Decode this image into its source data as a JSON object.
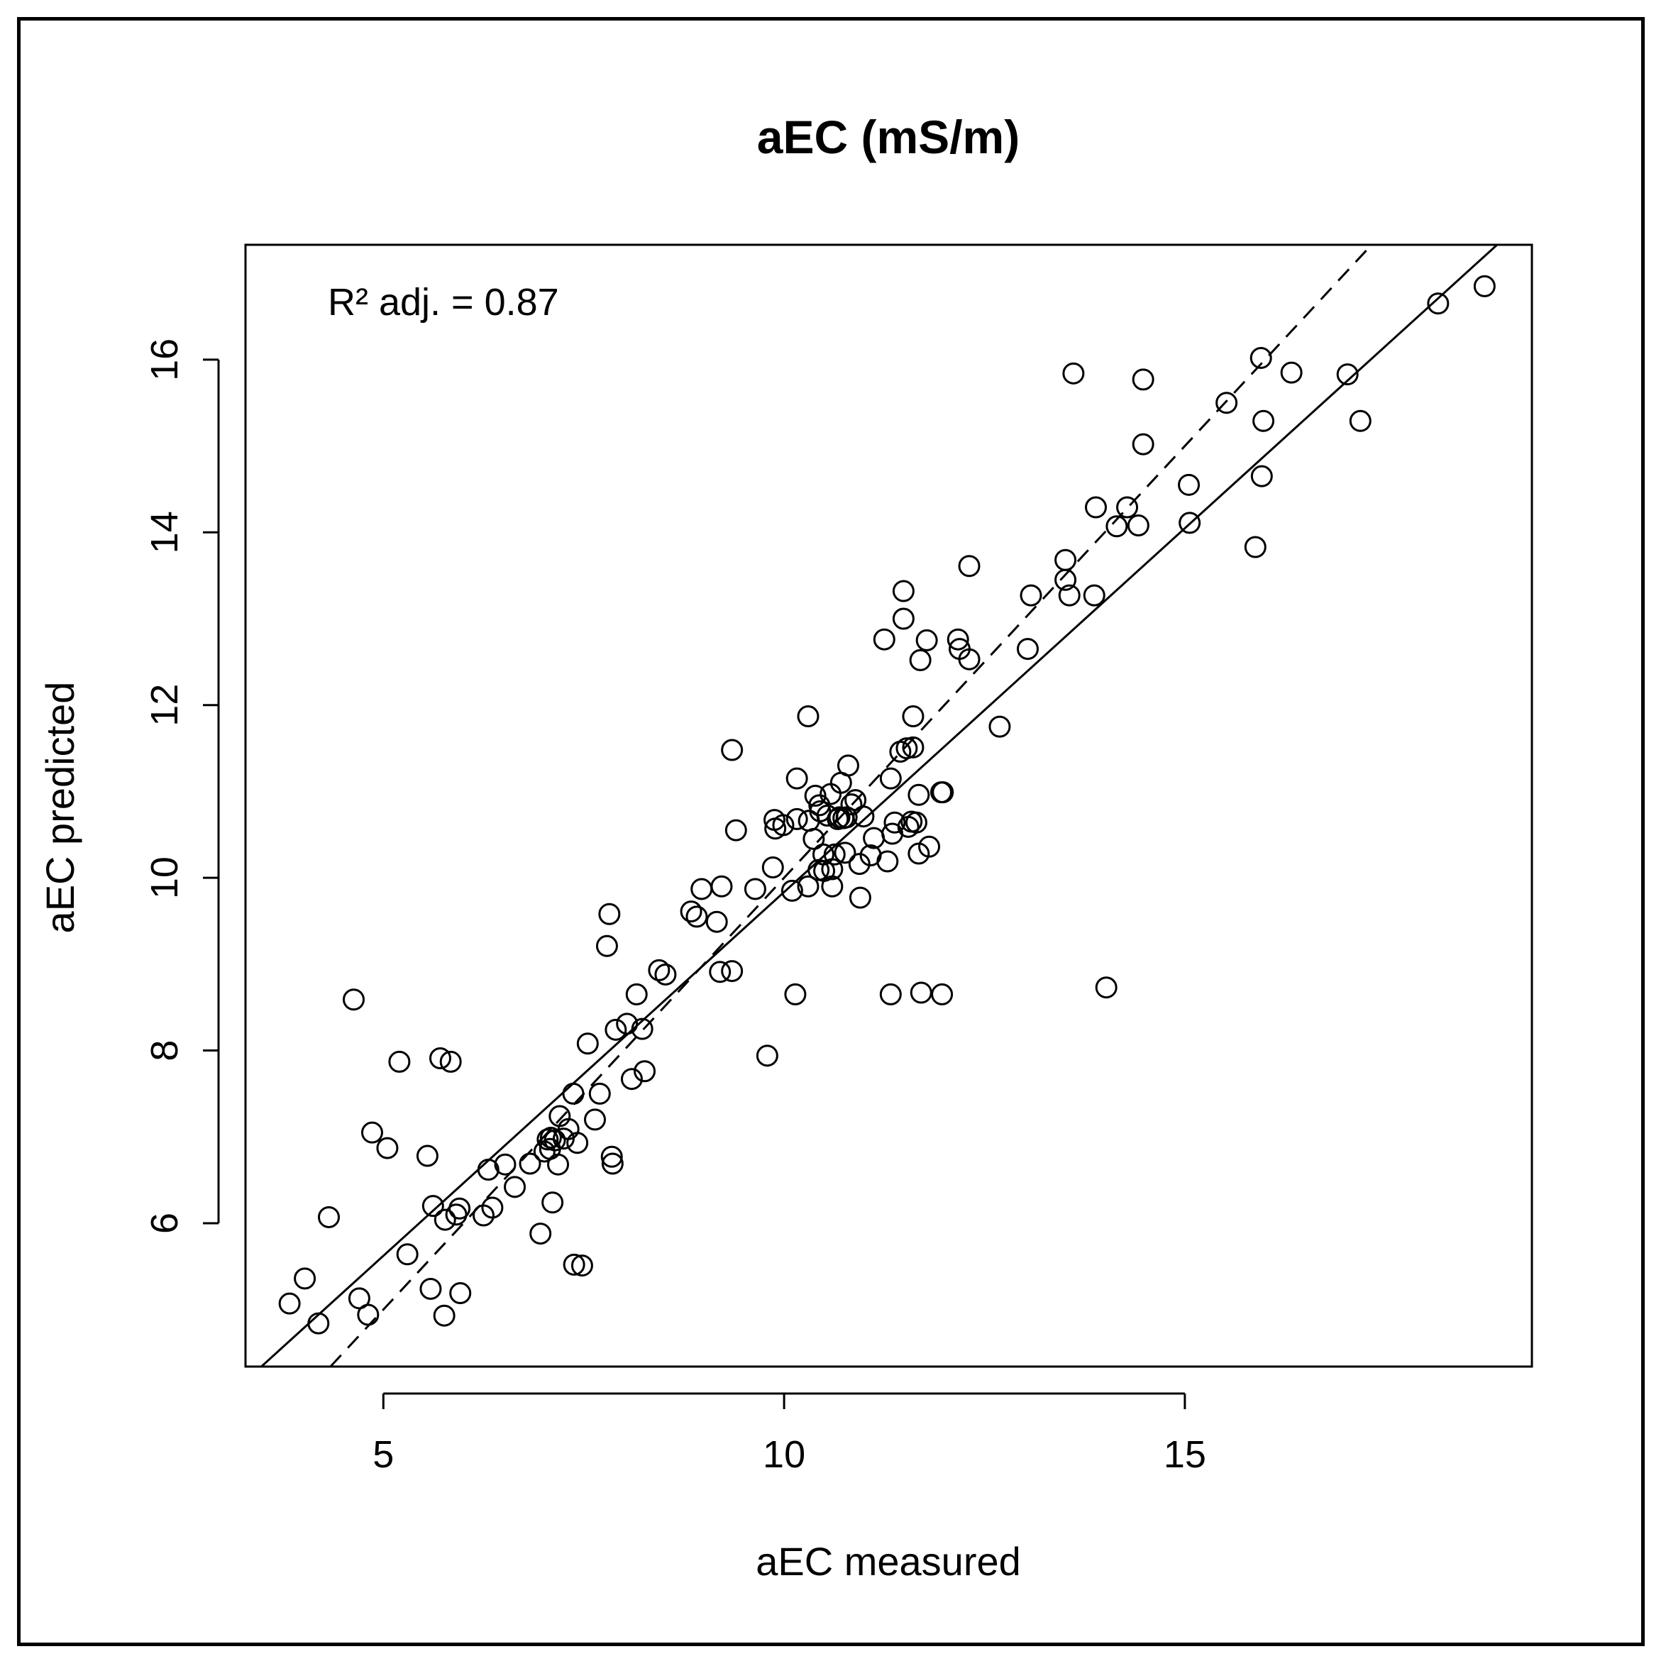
{
  "chart_data": {
    "type": "scatter",
    "title": "aEC (mS/m)",
    "xlabel": "aEC measured",
    "ylabel": "aEC predicted",
    "annotation": "R² adj. = 0.87",
    "xlim": [
      3.28,
      19.33
    ],
    "ylim": [
      4.34,
      17.33
    ],
    "xticks": [
      5,
      10,
      15
    ],
    "yticks": [
      6,
      8,
      10,
      12,
      14,
      16
    ],
    "lines": [
      {
        "name": "fitted regression",
        "style": "solid",
        "slope": 0.8425,
        "intercept": 1.41
      },
      {
        "name": "1:1 line",
        "style": "dashed",
        "slope": 1.0,
        "intercept": 0.0
      }
    ],
    "series": [
      {
        "name": "observations",
        "points": [
          [
            3.83,
            5.07
          ],
          [
            4.02,
            5.36
          ],
          [
            4.19,
            4.84
          ],
          [
            4.32,
            6.07
          ],
          [
            4.63,
            8.59
          ],
          [
            4.7,
            5.13
          ],
          [
            4.81,
            4.94
          ],
          [
            4.86,
            7.05
          ],
          [
            5.05,
            6.87
          ],
          [
            5.2,
            7.87
          ],
          [
            5.3,
            5.64
          ],
          [
            5.55,
            6.78
          ],
          [
            5.59,
            5.24
          ],
          [
            5.62,
            6.2
          ],
          [
            5.71,
            7.91
          ],
          [
            5.76,
            4.93
          ],
          [
            5.77,
            6.04
          ],
          [
            5.84,
            7.87
          ],
          [
            5.91,
            6.1
          ],
          [
            5.95,
            6.17
          ],
          [
            5.96,
            5.19
          ],
          [
            6.25,
            6.09
          ],
          [
            6.31,
            6.62
          ],
          [
            6.36,
            6.18
          ],
          [
            6.52,
            6.68
          ],
          [
            6.64,
            6.42
          ],
          [
            6.83,
            6.69
          ],
          [
            6.96,
            5.88
          ],
          [
            7.01,
            6.83
          ],
          [
            7.05,
            6.97
          ],
          [
            7.08,
            6.86
          ],
          [
            7.09,
            6.99
          ],
          [
            7.11,
            6.24
          ],
          [
            7.14,
            6.96
          ],
          [
            7.18,
            6.68
          ],
          [
            7.2,
            7.24
          ],
          [
            7.25,
            6.98
          ],
          [
            7.31,
            7.09
          ],
          [
            7.37,
            7.5
          ],
          [
            7.38,
            5.52
          ],
          [
            7.42,
            6.93
          ],
          [
            7.48,
            5.51
          ],
          [
            7.55,
            8.08
          ],
          [
            7.64,
            7.2
          ],
          [
            7.7,
            7.5
          ],
          [
            7.79,
            9.21
          ],
          [
            7.82,
            9.58
          ],
          [
            7.85,
            6.77
          ],
          [
            7.86,
            6.69
          ],
          [
            7.9,
            8.24
          ],
          [
            8.04,
            8.31
          ],
          [
            8.1,
            7.67
          ],
          [
            8.16,
            8.65
          ],
          [
            8.23,
            8.25
          ],
          [
            8.26,
            7.76
          ],
          [
            8.44,
            8.93
          ],
          [
            8.52,
            8.88
          ],
          [
            8.84,
            9.61
          ],
          [
            8.91,
            9.55
          ],
          [
            8.97,
            9.87
          ],
          [
            9.16,
            9.49
          ],
          [
            9.2,
            8.91
          ],
          [
            9.22,
            9.9
          ],
          [
            9.35,
            8.92
          ],
          [
            9.35,
            11.48
          ],
          [
            9.4,
            10.55
          ],
          [
            9.64,
            9.87
          ],
          [
            9.79,
            7.94
          ],
          [
            9.86,
            10.12
          ],
          [
            9.88,
            10.67
          ],
          [
            9.89,
            10.57
          ],
          [
            9.99,
            10.61
          ],
          [
            10.1,
            9.85
          ],
          [
            10.14,
            8.65
          ],
          [
            10.16,
            10.68
          ],
          [
            10.16,
            11.15
          ],
          [
            10.3,
            9.9
          ],
          [
            10.3,
            11.87
          ],
          [
            10.31,
            10.66
          ],
          [
            10.37,
            10.45
          ],
          [
            10.39,
            10.95
          ],
          [
            10.43,
            10.09
          ],
          [
            10.44,
            10.84
          ],
          [
            10.45,
            10.77
          ],
          [
            10.49,
            10.27
          ],
          [
            10.5,
            10.08
          ],
          [
            10.54,
            10.72
          ],
          [
            10.58,
            10.97
          ],
          [
            10.6,
            10.1
          ],
          [
            10.6,
            9.9
          ],
          [
            10.63,
            10.27
          ],
          [
            10.67,
            10.68
          ],
          [
            10.69,
            10.7
          ],
          [
            10.71,
            11.1
          ],
          [
            10.74,
            10.69
          ],
          [
            10.76,
            10.29
          ],
          [
            10.78,
            10.7
          ],
          [
            10.8,
            11.3
          ],
          [
            10.84,
            10.85
          ],
          [
            10.89,
            10.9
          ],
          [
            10.94,
            10.16
          ],
          [
            10.95,
            9.77
          ],
          [
            10.99,
            10.71
          ],
          [
            11.08,
            10.26
          ],
          [
            11.12,
            10.46
          ],
          [
            11.25,
            12.76
          ],
          [
            11.29,
            10.19
          ],
          [
            11.33,
            11.15
          ],
          [
            11.33,
            8.65
          ],
          [
            11.35,
            10.51
          ],
          [
            11.38,
            10.64
          ],
          [
            11.45,
            11.46
          ],
          [
            11.49,
            13.32
          ],
          [
            11.49,
            13.0
          ],
          [
            11.53,
            11.5
          ],
          [
            11.55,
            10.59
          ],
          [
            11.59,
            10.65
          ],
          [
            11.61,
            11.51
          ],
          [
            11.61,
            11.87
          ],
          [
            11.65,
            10.64
          ],
          [
            11.68,
            10.28
          ],
          [
            11.68,
            10.96
          ],
          [
            11.7,
            12.52
          ],
          [
            11.71,
            8.67
          ],
          [
            11.78,
            12.75
          ],
          [
            11.81,
            10.36
          ],
          [
            11.96,
            10.99
          ],
          [
            11.97,
            8.65
          ],
          [
            11.98,
            10.99
          ],
          [
            12.17,
            12.76
          ],
          [
            12.19,
            12.65
          ],
          [
            12.31,
            13.61
          ],
          [
            12.31,
            12.53
          ],
          [
            12.69,
            11.75
          ],
          [
            13.04,
            12.65
          ],
          [
            13.08,
            13.27
          ],
          [
            13.51,
            13.68
          ],
          [
            13.51,
            13.45
          ],
          [
            13.56,
            13.27
          ],
          [
            13.61,
            15.84
          ],
          [
            13.87,
            13.27
          ],
          [
            13.89,
            14.29
          ],
          [
            14.02,
            8.73
          ],
          [
            14.15,
            14.07
          ],
          [
            14.28,
            14.29
          ],
          [
            14.42,
            14.08
          ],
          [
            14.48,
            15.02
          ],
          [
            14.48,
            15.77
          ],
          [
            15.05,
            14.55
          ],
          [
            15.06,
            14.11
          ],
          [
            15.52,
            15.5
          ],
          [
            15.88,
            13.83
          ],
          [
            15.95,
            16.02
          ],
          [
            15.96,
            14.65
          ],
          [
            15.98,
            15.29
          ],
          [
            16.33,
            15.85
          ],
          [
            17.03,
            15.83
          ],
          [
            17.19,
            15.29
          ],
          [
            18.16,
            16.65
          ],
          [
            18.74,
            16.85
          ]
        ]
      }
    ]
  }
}
